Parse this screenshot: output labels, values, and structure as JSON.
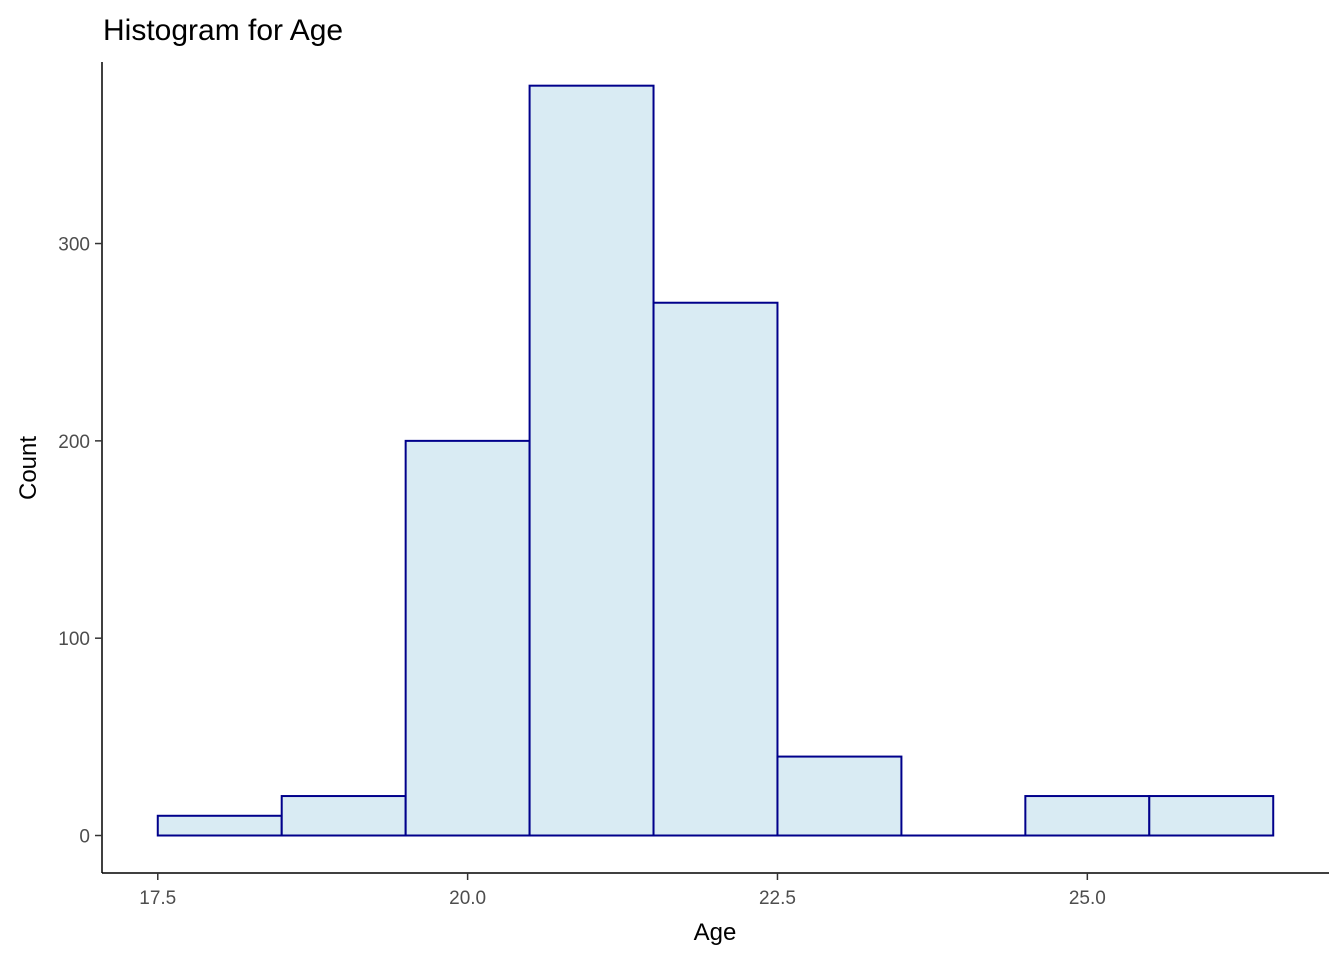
{
  "chart_data": {
    "type": "bar",
    "title": "Histogram for Age",
    "xlabel": "Age",
    "ylabel": "Count",
    "bins": [
      {
        "x0": 17.5,
        "x1": 18.5,
        "count": 10
      },
      {
        "x0": 18.5,
        "x1": 19.5,
        "count": 20
      },
      {
        "x0": 19.5,
        "x1": 20.5,
        "count": 200
      },
      {
        "x0": 20.5,
        "x1": 21.5,
        "count": 380
      },
      {
        "x0": 21.5,
        "x1": 22.5,
        "count": 270
      },
      {
        "x0": 22.5,
        "x1": 23.5,
        "count": 40
      },
      {
        "x0": 23.5,
        "x1": 24.5,
        "count": 0
      },
      {
        "x0": 24.5,
        "x1": 25.5,
        "count": 20
      },
      {
        "x0": 25.5,
        "x1": 26.5,
        "count": 20
      }
    ],
    "xticks": [
      "17.5",
      "20.0",
      "22.5",
      "25.0"
    ],
    "yticks": [
      "0",
      "100",
      "200",
      "300"
    ],
    "xlim": [
      17.05,
      26.95
    ],
    "ylim": [
      -19,
      392
    ],
    "grid": false,
    "legend": "none",
    "colors": {
      "bar_fill": "#d9ebf3",
      "bar_stroke": "#00008b",
      "axis": "#000000"
    }
  }
}
